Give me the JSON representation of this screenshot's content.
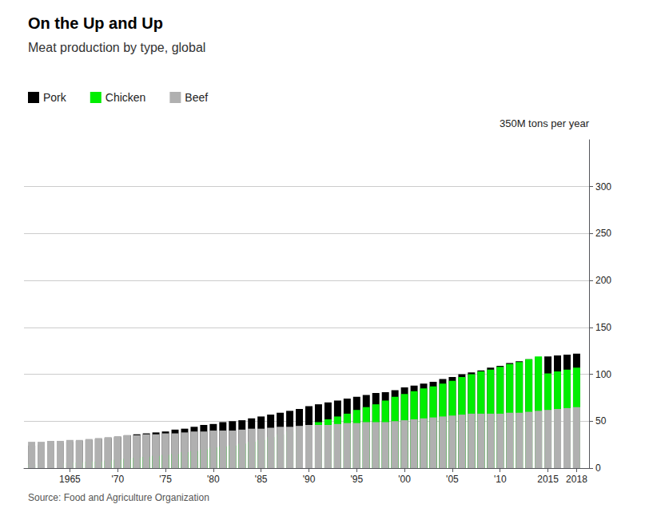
{
  "chart_data": {
    "type": "bar",
    "title": "On the Up and Up",
    "subtitle": "Meat production by type, global",
    "source": "Source: Food and Agriculture Organization",
    "ylabel": "350M tons per year",
    "stacked": true,
    "grid": true,
    "legend": "upper left",
    "x": [
      1961,
      1962,
      1963,
      1964,
      1965,
      1966,
      1967,
      1968,
      1969,
      1970,
      1971,
      1972,
      1973,
      1974,
      1975,
      1976,
      1977,
      1978,
      1979,
      1980,
      1981,
      1982,
      1983,
      1984,
      1985,
      1986,
      1987,
      1988,
      1989,
      1990,
      1991,
      1992,
      1993,
      1994,
      1995,
      1996,
      1997,
      1998,
      1999,
      2000,
      2001,
      2002,
      2003,
      2004,
      2005,
      2006,
      2007,
      2008,
      2009,
      2010,
      2011,
      2012,
      2013,
      2014,
      2015,
      2016,
      2017,
      2018
    ],
    "series": [
      {
        "name": "Pork",
        "color": "#000000",
        "values": [
          24,
          25,
          26,
          27,
          28,
          29,
          30,
          31,
          32,
          33,
          35,
          36,
          37,
          38,
          39,
          41,
          42,
          44,
          46,
          47,
          49,
          50,
          51,
          53,
          55,
          57,
          59,
          61,
          63,
          66,
          68,
          70,
          72,
          74,
          76,
          78,
          80,
          81,
          83,
          86,
          88,
          90,
          92,
          95,
          97,
          100,
          102,
          104,
          107,
          109,
          112,
          114,
          116,
          118,
          119,
          120,
          121,
          122
        ]
      },
      {
        "name": "Chicken",
        "color": "#00ee00",
        "values": [
          4,
          4,
          5,
          5,
          6,
          6,
          7,
          7,
          8,
          9,
          10,
          11,
          12,
          13,
          14,
          15,
          17,
          18,
          20,
          22,
          23,
          24,
          26,
          28,
          30,
          33,
          36,
          39,
          42,
          46,
          49,
          52,
          55,
          58,
          62,
          65,
          68,
          72,
          76,
          79,
          82,
          85,
          87,
          90,
          93,
          97,
          100,
          103,
          105,
          108,
          111,
          113,
          116,
          119,
          101,
          103,
          105,
          107
        ]
      },
      {
        "name": "Beef",
        "color": "#b0b0b0",
        "values": [
          28,
          28,
          29,
          29,
          30,
          30,
          31,
          32,
          33,
          34,
          35,
          35,
          36,
          36,
          37,
          37,
          38,
          39,
          39,
          40,
          40,
          40,
          41,
          42,
          42,
          43,
          44,
          44,
          45,
          46,
          46,
          46,
          47,
          48,
          48,
          49,
          49,
          49,
          50,
          51,
          52,
          53,
          54,
          55,
          56,
          57,
          58,
          58,
          58,
          58,
          59,
          59,
          60,
          61,
          62,
          63,
          64,
          65
        ]
      }
    ],
    "xlim": [
      1960.2,
      2019.3
    ],
    "xticks": [
      1965,
      {
        "value": 1970,
        "label": "'70"
      },
      {
        "value": 1975,
        "label": "'75"
      },
      {
        "value": 1980,
        "label": "'80"
      },
      {
        "value": 1985,
        "label": "'85"
      },
      {
        "value": 1990,
        "label": "'90"
      },
      {
        "value": 1995,
        "label": "'95"
      },
      {
        "value": 2000,
        "label": "'00"
      },
      {
        "value": 2005,
        "label": "'05"
      },
      {
        "value": 2010,
        "label": "'10"
      },
      2015,
      2018
    ],
    "ylim": [
      0,
      350
    ],
    "yticks": [
      0,
      50,
      100,
      150,
      200,
      250,
      300
    ]
  }
}
